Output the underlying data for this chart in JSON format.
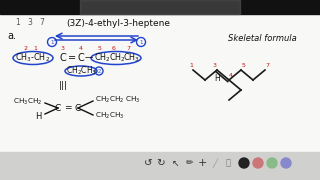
{
  "bg_color": "#e8e8e8",
  "header_color": "#1a1a1a",
  "title": "(3Z)-4-ethyl-3-heptene",
  "label_a": "a.",
  "skeletal_label": "Skeletal formula",
  "arrow_color": "#2244cc",
  "circle_color": "#2244cc",
  "red_color": "#cc1111",
  "text_color": "#111111",
  "toolbar_bg": "#cccccc",
  "white_bg": "#f8f8f6"
}
